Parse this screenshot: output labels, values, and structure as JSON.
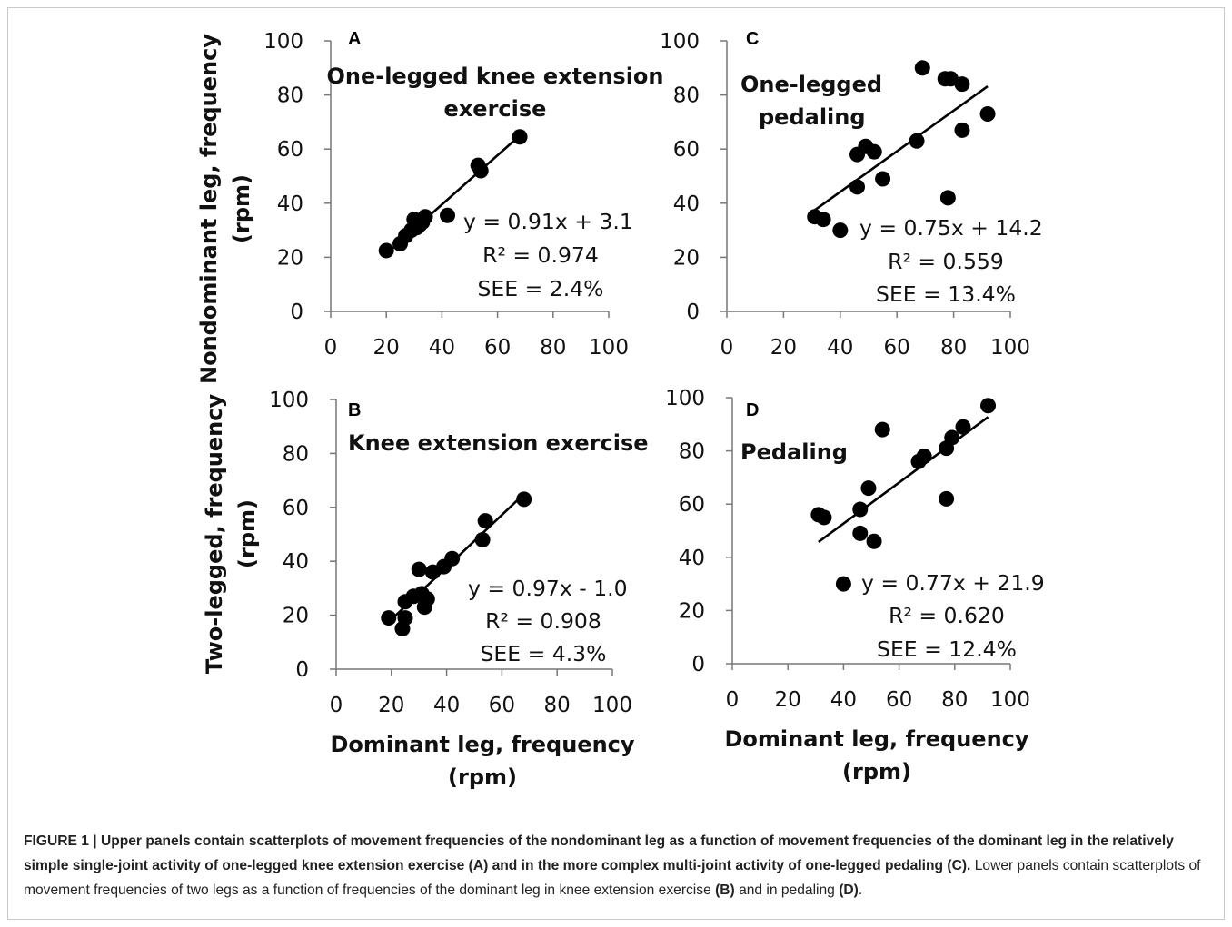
{
  "caption": {
    "lead": "FIGURE 1 | Upper panels contain scatterplots of movement frequencies of the nondominant leg as a function of movement frequencies of the dominant leg in the relatively simple single-joint activity of one-legged knee extension exercise ",
    "ref_a": "(A)",
    "mid": " and in the more complex multi-joint activity of one-legged pedaling ",
    "ref_c": "(C).",
    "rest1": " Lower panels contain scatterplots of movement frequencies of two legs as a function of frequencies of the dominant leg in knee extension exercise ",
    "ref_b": "(B)",
    "rest2": " and in pedaling ",
    "ref_d": "(D)",
    "end": "."
  },
  "chart_data": [
    {
      "type": "scatter",
      "panel": "A",
      "title": [
        "One-legged knee extension",
        "exercise"
      ],
      "ylabel": [
        "Nondominant  leg, frequency",
        "(rpm)"
      ],
      "xlabel": [],
      "xlim": [
        0,
        100
      ],
      "ylim": [
        0,
        100
      ],
      "ticks": [
        "0",
        "20",
        "40",
        "60",
        "80",
        "100"
      ],
      "points": [
        [
          20,
          22.5
        ],
        [
          25,
          25
        ],
        [
          27,
          28
        ],
        [
          29,
          30
        ],
        [
          30,
          34
        ],
        [
          31,
          31
        ],
        [
          32,
          32
        ],
        [
          33,
          33
        ],
        [
          34,
          35
        ],
        [
          42,
          35.5
        ],
        [
          53,
          54
        ],
        [
          54,
          52
        ],
        [
          68,
          64.5
        ]
      ],
      "fit": {
        "slope": 0.91,
        "intercept": 3.1,
        "x_from": 20,
        "x_to": 68
      },
      "stats": [
        "y = 0.91x + 3.1",
        "R² = 0.974",
        "SEE = 2.4%"
      ]
    },
    {
      "type": "scatter",
      "panel": "C",
      "title": [
        "One-legged",
        "pedaling"
      ],
      "ylabel": [],
      "xlabel": [],
      "xlim": [
        0,
        100
      ],
      "ylim": [
        0,
        100
      ],
      "ticks": [
        "0",
        "20",
        "40",
        "60",
        "80",
        "100"
      ],
      "points": [
        [
          31,
          35
        ],
        [
          34,
          34
        ],
        [
          40,
          30
        ],
        [
          46,
          58
        ],
        [
          46,
          46
        ],
        [
          49,
          61
        ],
        [
          52,
          59
        ],
        [
          55,
          49
        ],
        [
          67,
          63
        ],
        [
          69,
          90
        ],
        [
          77,
          86
        ],
        [
          79,
          86
        ],
        [
          78,
          42
        ],
        [
          83,
          84
        ],
        [
          83,
          67
        ],
        [
          92,
          73
        ]
      ],
      "fit": {
        "slope": 0.75,
        "intercept": 14.2,
        "x_from": 31,
        "x_to": 92
      },
      "stats": [
        "y = 0.75x + 14.2",
        "R² = 0.559",
        "SEE = 13.4%"
      ]
    },
    {
      "type": "scatter",
      "panel": "B",
      "title": [
        "Knee extension exercise"
      ],
      "ylabel": [
        "Two-legged, frequency",
        "(rpm)"
      ],
      "xlabel": [
        "Dominant leg, frequency",
        "(rpm)"
      ],
      "xlim": [
        0,
        100
      ],
      "ylim": [
        0,
        100
      ],
      "ticks": [
        "0",
        "20",
        "40",
        "60",
        "80",
        "100"
      ],
      "points": [
        [
          19,
          19
        ],
        [
          24,
          15
        ],
        [
          25,
          25
        ],
        [
          25,
          19
        ],
        [
          28,
          27
        ],
        [
          30,
          37
        ],
        [
          31,
          28
        ],
        [
          32,
          23
        ],
        [
          33,
          26
        ],
        [
          35,
          36
        ],
        [
          39,
          38
        ],
        [
          42,
          41
        ],
        [
          53,
          48
        ],
        [
          54,
          55
        ],
        [
          68,
          63
        ]
      ],
      "fit": {
        "slope": 0.97,
        "intercept": -1.0,
        "x_from": 20,
        "x_to": 68
      },
      "stats": [
        "y = 0.97x - 1.0",
        "R² = 0.908",
        "SEE = 4.3%"
      ]
    },
    {
      "type": "scatter",
      "panel": "D",
      "title": [
        "Pedaling"
      ],
      "ylabel": [],
      "xlabel": [
        "Dominant leg, frequency",
        "(rpm)"
      ],
      "xlim": [
        0,
        100
      ],
      "ylim": [
        0,
        100
      ],
      "ticks": [
        "0",
        "20",
        "40",
        "60",
        "80",
        "100"
      ],
      "points": [
        [
          31,
          56
        ],
        [
          33,
          55
        ],
        [
          40,
          30
        ],
        [
          46,
          58
        ],
        [
          46,
          49
        ],
        [
          49,
          66
        ],
        [
          51,
          46
        ],
        [
          54,
          88
        ],
        [
          67,
          76
        ],
        [
          69,
          78
        ],
        [
          77,
          81
        ],
        [
          77,
          62
        ],
        [
          79,
          85
        ],
        [
          83,
          89
        ],
        [
          92,
          97
        ]
      ],
      "fit": {
        "slope": 0.77,
        "intercept": 21.9,
        "x_from": 31,
        "x_to": 92
      },
      "stats": [
        "y = 0.77x + 21.9",
        "R² = 0.620",
        "SEE = 12.4%"
      ]
    }
  ]
}
